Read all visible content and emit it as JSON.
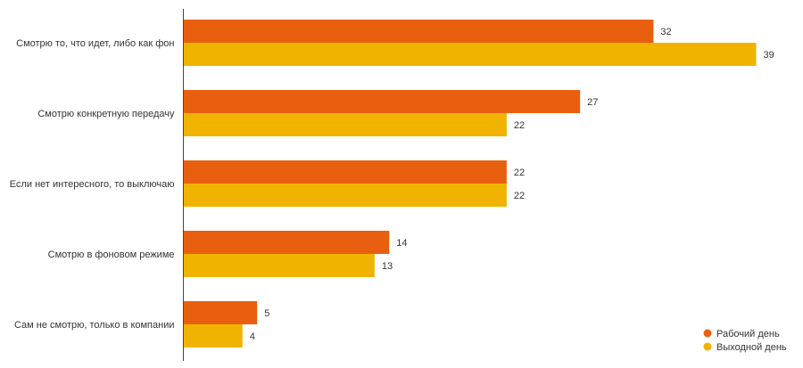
{
  "chart_data": {
    "type": "bar",
    "orientation": "horizontal",
    "categories": [
      "Смотрю то, что идет, либо как фон",
      "Смотрю конкретную передачу",
      "Если нет интересного, то выключаю",
      "Смотрю в фоновом режиме",
      "Сам не смотрю, только в компании"
    ],
    "series": [
      {
        "name": "Рабочий день",
        "values": [
          32,
          27,
          22,
          14,
          5
        ],
        "color": "#e8600f"
      },
      {
        "name": "Выходной день",
        "values": [
          39,
          22,
          22,
          13,
          4
        ],
        "color": "#f0b400"
      }
    ],
    "xlim": [
      0,
      40
    ],
    "legend_position": "bottom-right",
    "grid": false
  }
}
